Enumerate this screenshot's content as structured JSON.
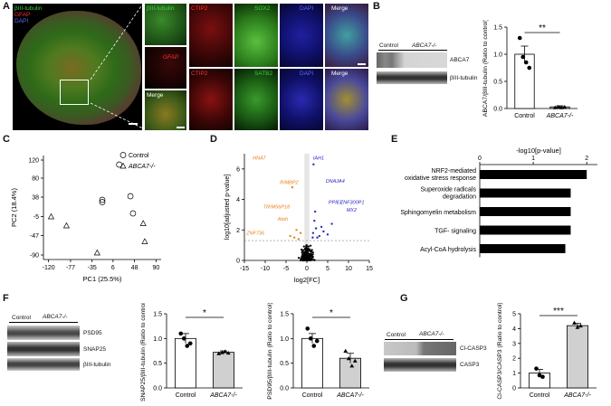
{
  "panels": {
    "A": "A",
    "B": "B",
    "C": "C",
    "D": "D",
    "E": "E",
    "F": "F",
    "G": "G"
  },
  "A": {
    "overview_legend": [
      "βIII-tubulin",
      "GFAP",
      "DAPI"
    ],
    "inset_labels": [
      "βIII-tubulin",
      "GFAP",
      "Merge"
    ],
    "row1": [
      "CTIP2",
      "SOX2",
      "DAPI",
      "Merge"
    ],
    "row2": [
      "CTIP2",
      "SATB2",
      "DAPI",
      "Merge"
    ]
  },
  "B": {
    "blot_groups": [
      "Control",
      "ABCA7-/-"
    ],
    "blot_bands": [
      "ABCA7",
      "βIII-tubulin"
    ],
    "chart_data": {
      "type": "bar",
      "categories": [
        "Control",
        "ABCA7-/-"
      ],
      "values": [
        1.0,
        0.03
      ],
      "errors": [
        0.15,
        0.02
      ],
      "points": [
        [
          1.3,
          0.95,
          0.85,
          0.75
        ],
        [
          0.02,
          0.03,
          0.02,
          0.03
        ]
      ],
      "ylabel": "ABCA7/βIII-tubulin (Ratio to control)",
      "ylim": [
        0,
        1.5
      ],
      "yticks": [
        "0.0",
        "0.5",
        "1.0",
        "1.5"
      ],
      "significance": "**"
    }
  },
  "C": {
    "chart_data": {
      "type": "scatter",
      "xlabel": "PC1 (25.5%)",
      "ylabel": "PC2 (18.4%)",
      "xticks": [
        "-120",
        "-77",
        "-35",
        "6",
        "48",
        "90"
      ],
      "yticks": [
        "-90",
        "-47",
        "-5",
        "38",
        "80",
        "120"
      ],
      "xlim": [
        -130,
        100
      ],
      "ylim": [
        -100,
        130
      ],
      "series": [
        {
          "name": "Control",
          "marker": "circle",
          "x": [
            18,
            -15,
            -15,
            40,
            45
          ],
          "y": [
            110,
            32,
            27,
            40,
            2
          ]
        },
        {
          "name": "ABCA7-/-",
          "marker": "triangle",
          "x": [
            -115,
            -85,
            -25,
            65,
            68
          ],
          "y": [
            -5,
            -25,
            -85,
            -20,
            -60
          ]
        }
      ]
    }
  },
  "D": {
    "chart_data": {
      "type": "scatter",
      "xlabel": "log2[FC]",
      "ylabel": "log10[adjusted p-value]",
      "xticks": [
        "-15",
        "-10",
        "-5",
        "0",
        "5",
        "10",
        "15"
      ],
      "yticks": [
        "0",
        "2",
        "4",
        "6"
      ],
      "xlim": [
        -15,
        15
      ],
      "ylim": [
        0,
        7
      ],
      "labels_down": [
        "HNAT",
        "RIMBP2",
        "TRIM56P18",
        "Atoh",
        "ZNF736"
      ],
      "labels_up": [
        "IAH1",
        "DNAJA4",
        "PPIEL",
        "ZNF300P1",
        "MX2"
      ],
      "colors": {
        "down": "#e8821e",
        "up": "#2a2ac8",
        "ns": "#000000"
      }
    }
  },
  "E": {
    "chart_data": {
      "type": "bar",
      "orientation": "horizontal",
      "xlabel": "-log10[p-value]",
      "xticks": [
        "0",
        "1",
        "2"
      ],
      "xlim": [
        0,
        2.2
      ],
      "categories": [
        "NRF2-mediated oxidative stress response",
        "Superoxide radicals degradation",
        "Sphingomyelin metabolism",
        "TGF- signaling",
        "Acyl-CoA hydrolysis"
      ],
      "values": [
        2.0,
        1.7,
        1.7,
        1.7,
        1.6
      ]
    }
  },
  "F": {
    "blot_groups": [
      "Control",
      "ABCA7-/-"
    ],
    "blot_bands": [
      "PSD95",
      "SNAP25",
      "βIII-tubulin"
    ],
    "chart_snap": {
      "type": "bar",
      "categories": [
        "Control",
        "ABCA7-/-"
      ],
      "values": [
        1.0,
        0.72
      ],
      "errors": [
        0.1,
        0.03
      ],
      "points": [
        [
          1.1,
          1.0,
          0.85,
          0.9
        ],
        [
          0.7,
          0.72,
          0.74,
          0.71
        ]
      ],
      "ylabel": "SNAP25/βIII-tubulin (Ratio to control)",
      "ylim": [
        0,
        1.5
      ],
      "yticks": [
        "0.0",
        "0.5",
        "1.0",
        "1.5"
      ],
      "significance": "*"
    },
    "chart_psd": {
      "type": "bar",
      "categories": [
        "Control",
        "ABCA7-/-"
      ],
      "values": [
        1.0,
        0.6
      ],
      "errors": [
        0.1,
        0.1
      ],
      "points": [
        [
          1.2,
          1.0,
          0.85,
          0.95
        ],
        [
          0.75,
          0.6,
          0.45,
          0.55
        ]
      ],
      "ylabel": "PSD95/βIII-tubulin (Ratio to control)",
      "ylim": [
        0,
        1.5
      ],
      "yticks": [
        "0.0",
        "0.5",
        "1.0",
        "1.5"
      ],
      "significance": "*"
    }
  },
  "G": {
    "blot_groups": [
      "Control",
      "ABCA7-/-"
    ],
    "blot_bands": [
      "Cl-CASP3",
      "CASP3"
    ],
    "chart_data": {
      "type": "bar",
      "categories": [
        "Control",
        "ABCA7-/-"
      ],
      "values": [
        1.0,
        4.2
      ],
      "errors": [
        0.25,
        0.15
      ],
      "points": [
        [
          1.3,
          0.85,
          0.75
        ],
        [
          4.4,
          4.1,
          4.2
        ]
      ],
      "ylabel": "Cl-CASP3/CASP3 (Ratio to control)",
      "ylim": [
        0,
        5
      ],
      "yticks": [
        "0",
        "1",
        "2",
        "3",
        "4",
        "5"
      ],
      "significance": "***"
    }
  }
}
